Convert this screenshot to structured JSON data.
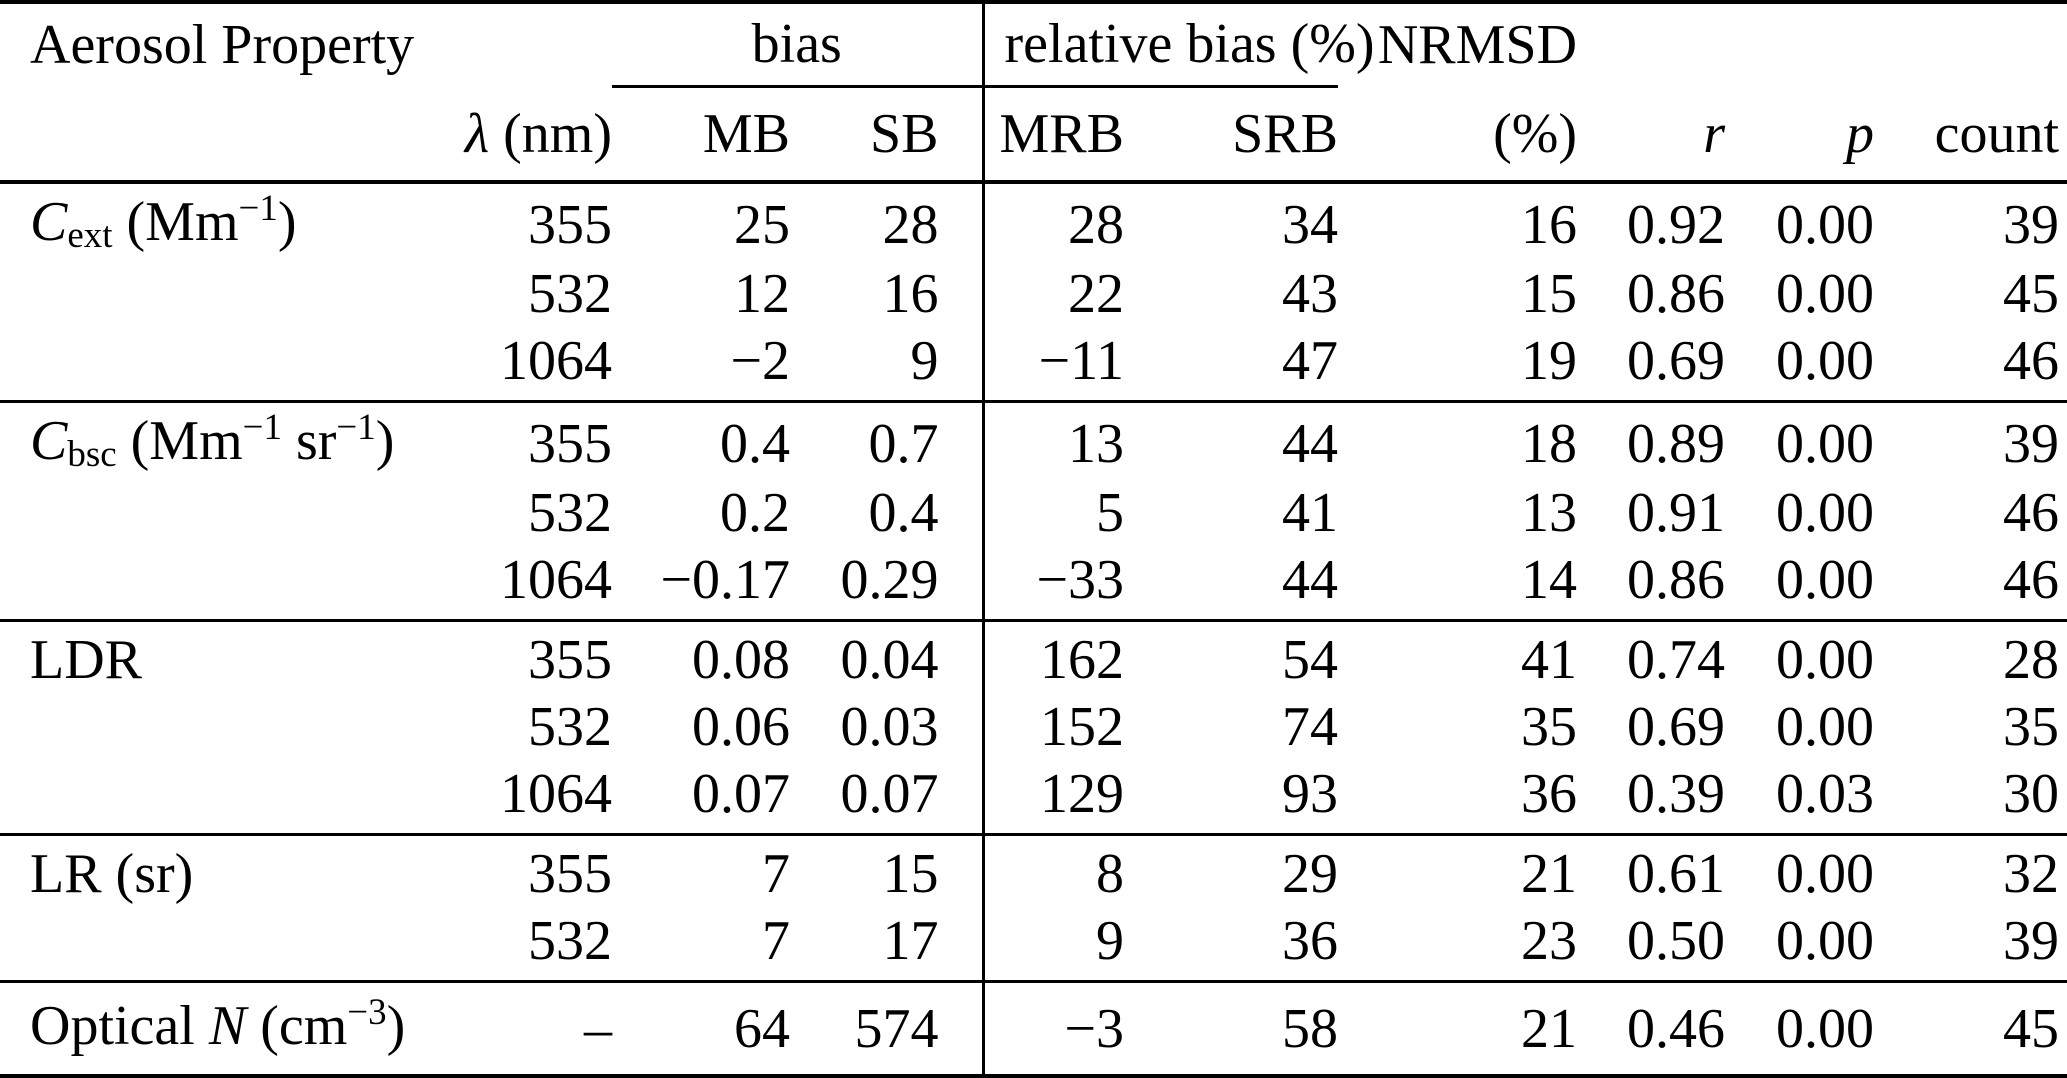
{
  "colors": {
    "text": "#000000",
    "background": "#ffffff",
    "rule": "#000000"
  },
  "table": {
    "group_headers": {
      "aerosol_property": "Aerosol Property",
      "bias": "bias",
      "relative_bias": "relative bias (%)",
      "nrmsd": "NRMSD"
    },
    "column_headers": {
      "lambda_parts": [
        [
          "i",
          "λ"
        ],
        [
          "n",
          " (nm)"
        ]
      ],
      "mb": "MB",
      "sb": "SB",
      "mrb": "MRB",
      "srb": "SRB",
      "pct": "(%)",
      "r": "r",
      "p": "p",
      "count": "count"
    },
    "groups": [
      {
        "id": "cext",
        "property_parts": [
          [
            "i",
            "C"
          ],
          [
            "sub",
            "ext"
          ],
          [
            "n",
            " (Mm"
          ],
          [
            "sup",
            "−1"
          ],
          [
            "n",
            ")"
          ]
        ],
        "rows": [
          {
            "lambda": "355",
            "mb": "25",
            "sb": "28",
            "mrb": "28",
            "srb": "34",
            "nrmsd_pct": "16",
            "r": "0.92",
            "p": "0.00",
            "count": "39"
          },
          {
            "lambda": "532",
            "mb": "12",
            "sb": "16",
            "mrb": "22",
            "srb": "43",
            "nrmsd_pct": "15",
            "r": "0.86",
            "p": "0.00",
            "count": "45"
          },
          {
            "lambda": "1064",
            "mb": "−2",
            "sb": "9",
            "mrb": "−11",
            "srb": "47",
            "nrmsd_pct": "19",
            "r": "0.69",
            "p": "0.00",
            "count": "46"
          }
        ]
      },
      {
        "id": "cbsc",
        "property_parts": [
          [
            "i",
            "C"
          ],
          [
            "sub",
            "bsc"
          ],
          [
            "n",
            " (Mm"
          ],
          [
            "sup",
            "−1"
          ],
          [
            "n",
            " sr"
          ],
          [
            "sup",
            "−1"
          ],
          [
            "n",
            ")"
          ]
        ],
        "rows": [
          {
            "lambda": "355",
            "mb": "0.4",
            "sb": "0.7",
            "mrb": "13",
            "srb": "44",
            "nrmsd_pct": "18",
            "r": "0.89",
            "p": "0.00",
            "count": "39"
          },
          {
            "lambda": "532",
            "mb": "0.2",
            "sb": "0.4",
            "mrb": "5",
            "srb": "41",
            "nrmsd_pct": "13",
            "r": "0.91",
            "p": "0.00",
            "count": "46"
          },
          {
            "lambda": "1064",
            "mb": "−0.17",
            "sb": "0.29",
            "mrb": "−33",
            "srb": "44",
            "nrmsd_pct": "14",
            "r": "0.86",
            "p": "0.00",
            "count": "46"
          }
        ]
      },
      {
        "id": "ldr",
        "property_parts": [
          [
            "n",
            "LDR"
          ]
        ],
        "rows": [
          {
            "lambda": "355",
            "mb": "0.08",
            "sb": "0.04",
            "mrb": "162",
            "srb": "54",
            "nrmsd_pct": "41",
            "r": "0.74",
            "p": "0.00",
            "count": "28"
          },
          {
            "lambda": "532",
            "mb": "0.06",
            "sb": "0.03",
            "mrb": "152",
            "srb": "74",
            "nrmsd_pct": "35",
            "r": "0.69",
            "p": "0.00",
            "count": "35"
          },
          {
            "lambda": "1064",
            "mb": "0.07",
            "sb": "0.07",
            "mrb": "129",
            "srb": "93",
            "nrmsd_pct": "36",
            "r": "0.39",
            "p": "0.03",
            "count": "30"
          }
        ]
      },
      {
        "id": "lr",
        "property_parts": [
          [
            "n",
            "LR (sr)"
          ]
        ],
        "rows": [
          {
            "lambda": "355",
            "mb": "7",
            "sb": "15",
            "mrb": "8",
            "srb": "29",
            "nrmsd_pct": "21",
            "r": "0.61",
            "p": "0.00",
            "count": "32"
          },
          {
            "lambda": "532",
            "mb": "7",
            "sb": "17",
            "mrb": "9",
            "srb": "36",
            "nrmsd_pct": "23",
            "r": "0.50",
            "p": "0.00",
            "count": "39"
          }
        ]
      },
      {
        "id": "optical-n",
        "property_parts": [
          [
            "n",
            "Optical "
          ],
          [
            "i",
            "N"
          ],
          [
            "n",
            " (cm"
          ],
          [
            "sup",
            "−3"
          ],
          [
            "n",
            ")"
          ]
        ],
        "rows": [
          {
            "lambda": "–",
            "mb": "64",
            "sb": "574",
            "mrb": "−3",
            "srb": "58",
            "nrmsd_pct": "21",
            "r": "0.46",
            "p": "0.00",
            "count": "45"
          }
        ]
      }
    ]
  }
}
